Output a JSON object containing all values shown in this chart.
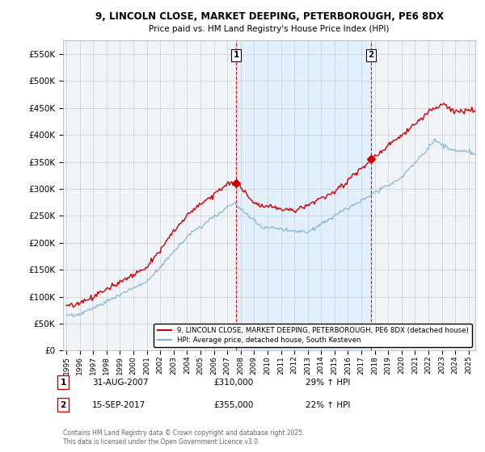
{
  "title": "9, LINCOLN CLOSE, MARKET DEEPING, PETERBOROUGH, PE6 8DX",
  "subtitle": "Price paid vs. HM Land Registry's House Price Index (HPI)",
  "ylabel_vals": [
    0,
    50000,
    100000,
    150000,
    200000,
    250000,
    300000,
    350000,
    400000,
    450000,
    500000,
    550000
  ],
  "ylim": [
    0,
    575000
  ],
  "xlim_start": 1994.75,
  "xlim_end": 2025.5,
  "transaction1_date": 2007.667,
  "transaction1_price": 310000,
  "transaction1_label": "1",
  "transaction2_date": 2017.708,
  "transaction2_price": 355000,
  "transaction2_label": "2",
  "red_color": "#cc0000",
  "blue_color": "#7ab0d4",
  "shade_color": "#ddeeff",
  "legend_red": "9, LINCOLN CLOSE, MARKET DEEPING, PETERBOROUGH, PE6 8DX (detached house)",
  "legend_blue": "HPI: Average price, detached house, South Kesteven",
  "annotation1_date": "31-AUG-2007",
  "annotation1_price": "£310,000",
  "annotation1_hpi": "29% ↑ HPI",
  "annotation2_date": "15-SEP-2017",
  "annotation2_price": "£355,000",
  "annotation2_hpi": "22% ↑ HPI",
  "footer": "Contains HM Land Registry data © Crown copyright and database right 2025.\nThis data is licensed under the Open Government Licence v3.0.",
  "background_color": "#ffffff",
  "grid_color": "#cccccc"
}
